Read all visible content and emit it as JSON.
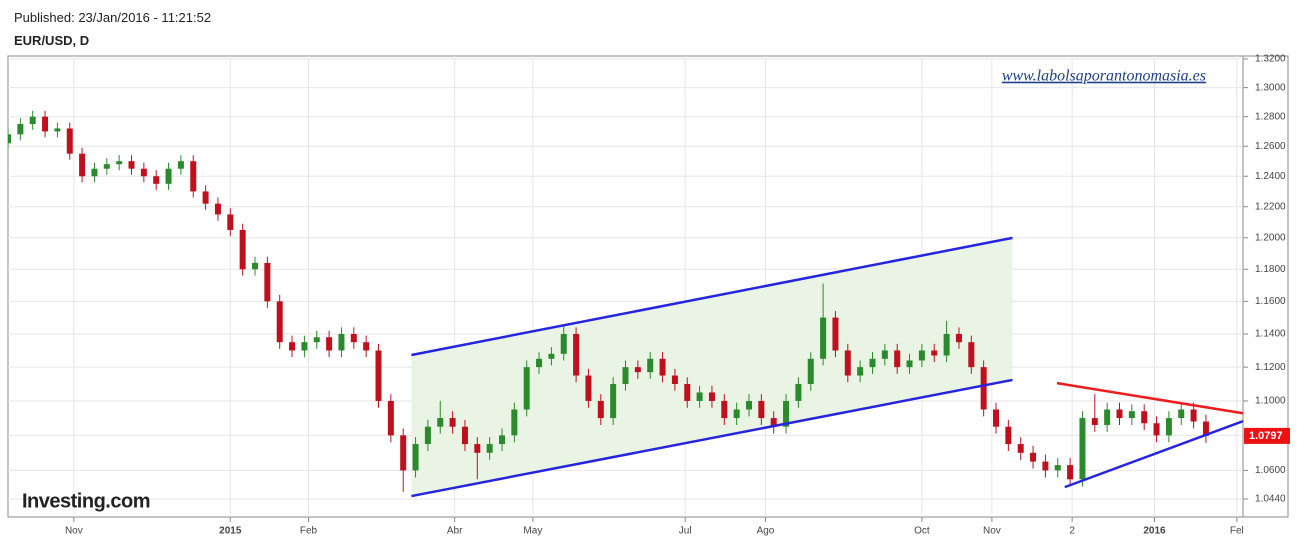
{
  "chart_data": {
    "type": "candlestick",
    "subtitle": "Published: 23/Jan/2016 - 11:21:52",
    "title": "EUR/USD, D",
    "watermark": "www.labolsaporantonomasia.es",
    "logo": "Investing.com",
    "up_color": "#2b8a2b",
    "down_color": "#c0101e",
    "last_price_color": "#ee1111",
    "log_scale": true,
    "grid": true,
    "xlim": [
      0,
      300
    ],
    "xticks": [
      {
        "value": 16,
        "label": "Nov"
      },
      {
        "value": 54,
        "label": "2015"
      },
      {
        "value": 73,
        "label": "Feb"
      },
      {
        "value": 108.5,
        "label": "Abr"
      },
      {
        "value": 127.5,
        "label": "May"
      },
      {
        "value": 164.5,
        "label": "Jul"
      },
      {
        "value": 184,
        "label": "Ago"
      },
      {
        "value": 222,
        "label": "Oct"
      },
      {
        "value": 239,
        "label": "Nov"
      },
      {
        "value": 258.5,
        "label": "2"
      },
      {
        "value": 278.5,
        "label": "2016"
      },
      {
        "value": 298.5,
        "label": "Fel"
      }
    ],
    "ylim": [
      1.034,
      1.3221
    ],
    "yticks": [
      {
        "value": 1.32,
        "label": "1.3200"
      },
      {
        "value": 1.3,
        "label": "1.3000"
      },
      {
        "value": 1.28,
        "label": "1.2800"
      },
      {
        "value": 1.26,
        "label": "1.2600"
      },
      {
        "value": 1.24,
        "label": "1.2400"
      },
      {
        "value": 1.22,
        "label": "1.2200"
      },
      {
        "value": 1.2,
        "label": "1.2000"
      },
      {
        "value": 1.18,
        "label": "1.1800"
      },
      {
        "value": 1.16,
        "label": "1.1600"
      },
      {
        "value": 1.14,
        "label": "1.1400"
      },
      {
        "value": 1.12,
        "label": "1.1200"
      },
      {
        "value": 1.1,
        "label": "1.1000"
      },
      {
        "value": 1.08,
        "label": "1.0800"
      },
      {
        "value": 1.06,
        "label": "1.0600"
      },
      {
        "value": 1.044,
        "label": "1.0440"
      }
    ],
    "x": [
      0,
      3,
      6,
      9,
      12,
      15,
      18,
      21,
      24,
      27,
      30,
      33,
      36,
      39,
      42,
      45,
      48,
      51,
      54,
      57,
      60,
      63,
      66,
      69,
      72,
      75,
      78,
      81,
      84,
      87,
      90,
      93,
      96,
      99,
      102,
      105,
      108,
      111,
      114,
      117,
      120,
      123,
      126,
      129,
      132,
      135,
      138,
      141,
      144,
      147,
      150,
      153,
      156,
      159,
      162,
      165,
      168,
      171,
      174,
      177,
      180,
      183,
      186,
      189,
      192,
      195,
      198,
      201,
      204,
      207,
      210,
      213,
      216,
      219,
      222,
      225,
      228,
      231,
      234,
      237,
      240,
      243,
      246,
      249,
      252,
      255,
      258,
      261,
      264,
      267,
      270,
      273,
      276,
      279,
      282,
      285,
      288,
      291
    ],
    "open": [
      1.262,
      1.268,
      1.275,
      1.28,
      1.27,
      1.272,
      1.255,
      1.24,
      1.245,
      1.248,
      1.25,
      1.245,
      1.24,
      1.235,
      1.245,
      1.25,
      1.23,
      1.222,
      1.215,
      1.205,
      1.18,
      1.184,
      1.16,
      1.135,
      1.13,
      1.135,
      1.138,
      1.13,
      1.14,
      1.135,
      1.13,
      1.1,
      1.08,
      1.06,
      1.075,
      1.085,
      1.09,
      1.085,
      1.075,
      1.07,
      1.075,
      1.08,
      1.095,
      1.12,
      1.125,
      1.128,
      1.14,
      1.115,
      1.1,
      1.09,
      1.11,
      1.12,
      1.117,
      1.125,
      1.115,
      1.11,
      1.1,
      1.105,
      1.1,
      1.09,
      1.095,
      1.1,
      1.09,
      1.085,
      1.1,
      1.11,
      1.125,
      1.15,
      1.13,
      1.115,
      1.12,
      1.125,
      1.13,
      1.12,
      1.124,
      1.13,
      1.127,
      1.14,
      1.135,
      1.12,
      1.095,
      1.085,
      1.075,
      1.07,
      1.065,
      1.06,
      1.063,
      1.055,
      1.09,
      1.086,
      1.095,
      1.09,
      1.094,
      1.087,
      1.08,
      1.09,
      1.095,
      1.088
    ],
    "high": [
      1.272,
      1.279,
      1.284,
      1.284,
      1.276,
      1.276,
      1.259,
      1.249,
      1.252,
      1.254,
      1.254,
      1.249,
      1.244,
      1.249,
      1.254,
      1.254,
      1.234,
      1.226,
      1.219,
      1.209,
      1.188,
      1.188,
      1.164,
      1.139,
      1.139,
      1.142,
      1.142,
      1.144,
      1.144,
      1.139,
      1.134,
      1.104,
      1.084,
      1.079,
      1.089,
      1.1,
      1.094,
      1.089,
      1.079,
      1.079,
      1.084,
      1.099,
      1.124,
      1.129,
      1.132,
      1.146,
      1.144,
      1.119,
      1.104,
      1.114,
      1.124,
      1.124,
      1.129,
      1.129,
      1.119,
      1.114,
      1.109,
      1.109,
      1.104,
      1.099,
      1.104,
      1.104,
      1.094,
      1.104,
      1.114,
      1.129,
      1.171,
      1.154,
      1.134,
      1.124,
      1.129,
      1.134,
      1.134,
      1.128,
      1.134,
      1.134,
      1.148,
      1.144,
      1.139,
      1.124,
      1.099,
      1.089,
      1.079,
      1.074,
      1.069,
      1.067,
      1.067,
      1.094,
      1.104,
      1.099,
      1.099,
      1.098,
      1.098,
      1.091,
      1.094,
      1.099,
      1.099,
      1.092
    ],
    "low": [
      1.258,
      1.264,
      1.271,
      1.266,
      1.266,
      1.251,
      1.236,
      1.236,
      1.241,
      1.244,
      1.241,
      1.236,
      1.231,
      1.231,
      1.241,
      1.226,
      1.218,
      1.211,
      1.201,
      1.176,
      1.176,
      1.156,
      1.131,
      1.126,
      1.126,
      1.131,
      1.126,
      1.126,
      1.131,
      1.126,
      1.096,
      1.076,
      1.048,
      1.056,
      1.071,
      1.081,
      1.081,
      1.071,
      1.055,
      1.066,
      1.071,
      1.076,
      1.091,
      1.116,
      1.121,
      1.124,
      1.111,
      1.096,
      1.086,
      1.086,
      1.106,
      1.113,
      1.113,
      1.111,
      1.106,
      1.096,
      1.096,
      1.096,
      1.086,
      1.086,
      1.091,
      1.086,
      1.081,
      1.081,
      1.096,
      1.106,
      1.121,
      1.126,
      1.111,
      1.111,
      1.116,
      1.121,
      1.116,
      1.116,
      1.12,
      1.123,
      1.123,
      1.131,
      1.116,
      1.091,
      1.081,
      1.071,
      1.066,
      1.061,
      1.056,
      1.056,
      1.051,
      1.051,
      1.082,
      1.082,
      1.086,
      1.086,
      1.083,
      1.076,
      1.076,
      1.086,
      1.084,
      1.0757
    ],
    "close": [
      1.268,
      1.275,
      1.28,
      1.27,
      1.272,
      1.255,
      1.24,
      1.245,
      1.248,
      1.25,
      1.245,
      1.24,
      1.235,
      1.245,
      1.25,
      1.23,
      1.222,
      1.215,
      1.205,
      1.18,
      1.184,
      1.16,
      1.135,
      1.13,
      1.135,
      1.138,
      1.13,
      1.14,
      1.135,
      1.13,
      1.1,
      1.08,
      1.06,
      1.075,
      1.085,
      1.09,
      1.085,
      1.075,
      1.07,
      1.075,
      1.08,
      1.095,
      1.12,
      1.125,
      1.128,
      1.14,
      1.115,
      1.1,
      1.09,
      1.11,
      1.12,
      1.117,
      1.125,
      1.115,
      1.11,
      1.1,
      1.105,
      1.1,
      1.09,
      1.095,
      1.1,
      1.09,
      1.085,
      1.1,
      1.11,
      1.125,
      1.15,
      1.13,
      1.115,
      1.12,
      1.125,
      1.13,
      1.12,
      1.124,
      1.13,
      1.127,
      1.14,
      1.135,
      1.12,
      1.095,
      1.085,
      1.075,
      1.07,
      1.065,
      1.06,
      1.063,
      1.055,
      1.09,
      1.086,
      1.095,
      1.09,
      1.094,
      1.087,
      1.08,
      1.09,
      1.095,
      1.088,
      1.0797
    ],
    "channel_color": "#e9f4e4",
    "lines": [
      {
        "color": "#2525e0",
        "x": [
          98,
          244
        ],
        "y": [
          1.1273,
          1.1999
        ]
      },
      {
        "color": "#2525e0",
        "x": [
          98,
          244
        ],
        "y": [
          1.0456,
          1.1124
        ]
      },
      {
        "color": "#ee1c1c",
        "x": [
          254.8,
          300
        ],
        "y": [
          1.1105,
          1.0928
        ]
      },
      {
        "color": "#2525e0",
        "x": [
          256.7,
          300
        ],
        "y": [
          1.0506,
          1.0882
        ]
      }
    ]
  }
}
